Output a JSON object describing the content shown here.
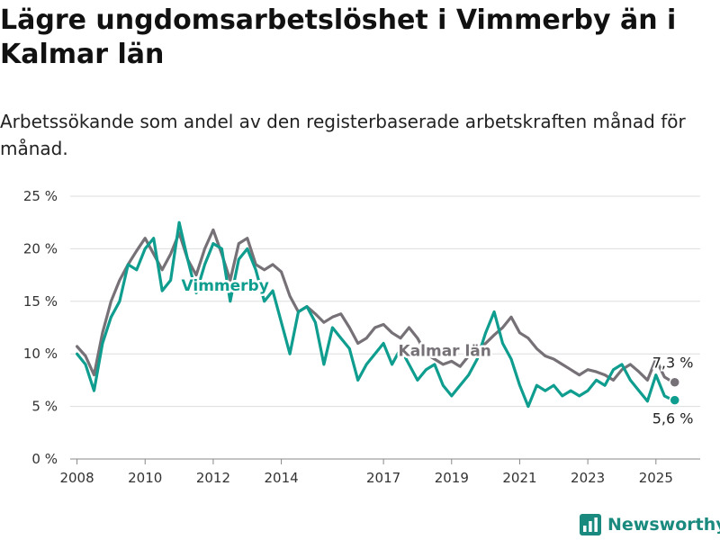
{
  "header": {
    "title": "Lägre ungdomsarbetslöshet i Vimmerby än i Kalmar län",
    "subtitle": "Arbetssökande som andel av den registerbaserade arbetskraften månad för månad."
  },
  "brand": {
    "name": "Newsworthy",
    "icon": "bar-chart-logo-icon",
    "color": "#1a8a7e"
  },
  "chart_data": {
    "type": "line",
    "ylim": [
      0,
      25
    ],
    "yticks": [
      0,
      5,
      10,
      15,
      20,
      25
    ],
    "ytick_labels": [
      "0 %",
      "5 %",
      "10 %",
      "15 %",
      "20 %",
      "25 %"
    ],
    "xlim": [
      2007.8,
      2026.3
    ],
    "xticks": [
      2008,
      2010,
      2012,
      2014,
      2017,
      2019,
      2021,
      2023,
      2025
    ],
    "xtick_labels": [
      "2008",
      "2010",
      "2012",
      "2014",
      "2017",
      "2019",
      "2021",
      "2023",
      "2025"
    ],
    "grid": "horizontal",
    "series": [
      {
        "name": "Kalmar län",
        "color": "#767176",
        "label_at": [
          2018.8,
          9.8
        ],
        "end_label": "7,3 %",
        "end_value": 7.3,
        "x": [
          2008.0,
          2008.25,
          2008.5,
          2008.75,
          2009.0,
          2009.25,
          2009.5,
          2009.75,
          2010.0,
          2010.25,
          2010.5,
          2010.75,
          2011.0,
          2011.25,
          2011.5,
          2011.75,
          2012.0,
          2012.25,
          2012.5,
          2012.75,
          2013.0,
          2013.25,
          2013.5,
          2013.75,
          2014.0,
          2014.25,
          2014.5,
          2014.75,
          2015.0,
          2015.25,
          2015.5,
          2015.75,
          2016.0,
          2016.25,
          2016.5,
          2016.75,
          2017.0,
          2017.25,
          2017.5,
          2017.75,
          2018.0,
          2018.25,
          2018.5,
          2018.75,
          2019.0,
          2019.25,
          2019.5,
          2019.75,
          2020.0,
          2020.25,
          2020.5,
          2020.75,
          2021.0,
          2021.25,
          2021.5,
          2021.75,
          2022.0,
          2022.25,
          2022.5,
          2022.75,
          2023.0,
          2023.25,
          2023.5,
          2023.75,
          2024.0,
          2024.25,
          2024.5,
          2024.75,
          2025.0,
          2025.25,
          2025.5
        ],
        "values": [
          10.7,
          9.8,
          8.0,
          12.0,
          15.0,
          17.0,
          18.5,
          19.8,
          21.0,
          19.5,
          18.0,
          19.5,
          21.5,
          19.0,
          17.5,
          20.0,
          21.8,
          19.5,
          17.0,
          20.5,
          21.0,
          18.5,
          18.0,
          18.5,
          17.8,
          15.5,
          14.0,
          14.5,
          13.8,
          13.0,
          13.5,
          13.8,
          12.5,
          11.0,
          11.5,
          12.5,
          12.8,
          12.0,
          11.5,
          12.5,
          11.5,
          10.0,
          9.5,
          9.0,
          9.3,
          8.8,
          9.8,
          10.5,
          11.0,
          11.8,
          12.5,
          13.5,
          12.0,
          11.5,
          10.5,
          9.8,
          9.5,
          9.0,
          8.5,
          8.0,
          8.5,
          8.3,
          8.0,
          7.5,
          8.5,
          9.0,
          8.3,
          7.5,
          9.5,
          7.8,
          7.3
        ]
      },
      {
        "name": "Vimmerby",
        "color": "#0e9d8e",
        "label_at": [
          2012.35,
          16.0
        ],
        "end_label": "5,6 %",
        "end_value": 5.6,
        "x": [
          2008.0,
          2008.25,
          2008.5,
          2008.75,
          2009.0,
          2009.25,
          2009.5,
          2009.75,
          2010.0,
          2010.25,
          2010.5,
          2010.75,
          2011.0,
          2011.25,
          2011.5,
          2011.75,
          2012.0,
          2012.25,
          2012.5,
          2012.75,
          2013.0,
          2013.25,
          2013.5,
          2013.75,
          2014.0,
          2014.25,
          2014.5,
          2014.75,
          2015.0,
          2015.25,
          2015.5,
          2015.75,
          2016.0,
          2016.25,
          2016.5,
          2016.75,
          2017.0,
          2017.25,
          2017.5,
          2017.75,
          2018.0,
          2018.25,
          2018.5,
          2018.75,
          2019.0,
          2019.25,
          2019.5,
          2019.75,
          2020.0,
          2020.25,
          2020.5,
          2020.75,
          2021.0,
          2021.25,
          2021.5,
          2021.75,
          2022.0,
          2022.25,
          2022.5,
          2022.75,
          2023.0,
          2023.25,
          2023.5,
          2023.75,
          2024.0,
          2024.25,
          2024.5,
          2024.75,
          2025.0,
          2025.25,
          2025.5
        ],
        "values": [
          10.0,
          9.0,
          6.5,
          11.0,
          13.5,
          15.0,
          18.5,
          18.0,
          20.0,
          21.0,
          16.0,
          17.0,
          22.5,
          19.0,
          15.8,
          18.5,
          20.5,
          20.0,
          15.0,
          19.0,
          20.0,
          18.0,
          15.0,
          16.0,
          13.0,
          10.0,
          14.0,
          14.5,
          13.0,
          9.0,
          12.5,
          11.5,
          10.5,
          7.5,
          9.0,
          10.0,
          11.0,
          9.0,
          10.5,
          9.0,
          7.5,
          8.5,
          9.0,
          7.0,
          6.0,
          7.0,
          8.0,
          9.5,
          12.0,
          14.0,
          11.0,
          9.5,
          7.0,
          5.0,
          7.0,
          6.5,
          7.0,
          6.0,
          6.5,
          6.0,
          6.5,
          7.5,
          7.0,
          8.5,
          9.0,
          7.5,
          6.5,
          5.5,
          8.0,
          6.0,
          5.6
        ]
      }
    ]
  }
}
